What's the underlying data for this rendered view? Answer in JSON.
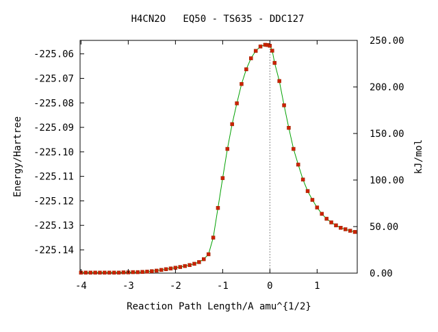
{
  "chart_data": {
    "type": "line",
    "title": "H4CN2O   EQ50 - TS635 - DDC127",
    "xlabel": "Reaction Path Length/A amu^{1/2}",
    "ylabel": "Energy/Hartree",
    "y2label": "kJ/mol",
    "xlim": [
      -4.02,
      1.85
    ],
    "ylim": [
      -225.1495,
      -225.0545
    ],
    "y2lim": [
      0.0,
      250.0
    ],
    "x_ticks": [
      -4,
      -3,
      -2,
      -1,
      0,
      1
    ],
    "x_tick_labels": [
      "-4",
      "-3",
      "-2",
      "-1",
      "0",
      "1"
    ],
    "y_ticks": [
      -225.06,
      -225.07,
      -225.08,
      -225.09,
      -225.1,
      -225.11,
      -225.12,
      -225.13,
      -225.14
    ],
    "y_tick_labels": [
      "-225.06",
      "-225.07",
      "-225.08",
      "-225.09",
      "-225.10",
      "-225.11",
      "-225.12",
      "-225.13",
      "-225.14"
    ],
    "y2_ticks": [
      0,
      50,
      100,
      150,
      200,
      250
    ],
    "y2_tick_labels": [
      "0.00",
      "50.00",
      "100.00",
      "150.00",
      "200.00",
      "250.00"
    ],
    "ts_marker_x": 0.0,
    "grid": false,
    "line_color": "#00a000",
    "marker_color": "#cc2200",
    "series": [
      {
        "x": [
          -4.0,
          -3.9,
          -3.8,
          -3.7,
          -3.6,
          -3.5,
          -3.4,
          -3.3,
          -3.2,
          -3.1,
          -3.0,
          -2.9,
          -2.8,
          -2.7,
          -2.6,
          -2.5,
          -2.4,
          -2.3,
          -2.2,
          -2.1,
          -2.0,
          -1.9,
          -1.8,
          -1.7,
          -1.6,
          -1.5,
          -1.4,
          -1.3,
          -1.2,
          -1.1,
          -1.0,
          -0.9,
          -0.8,
          -0.7,
          -0.6,
          -0.5,
          -0.4,
          -0.3,
          -0.2,
          -0.1,
          -0.05,
          0.0,
          0.05,
          0.1,
          0.2,
          0.3,
          0.4,
          0.5,
          0.6,
          0.7,
          0.8,
          0.9,
          1.0,
          1.1,
          1.2,
          1.3,
          1.4,
          1.5,
          1.6,
          1.7,
          1.8
        ],
        "y": [
          -225.1493,
          -225.1493,
          -225.1493,
          -225.1493,
          -225.1493,
          -225.1493,
          -225.1493,
          -225.1493,
          -225.1493,
          -225.1492,
          -225.1492,
          -225.1491,
          -225.1491,
          -225.149,
          -225.1489,
          -225.1487,
          -225.1485,
          -225.1482,
          -225.1479,
          -225.1476,
          -225.1473,
          -225.147,
          -225.1466,
          -225.1462,
          -225.1457,
          -225.145,
          -225.1438,
          -225.1418,
          -225.135,
          -225.1229,
          -225.1107,
          -225.0988,
          -225.0887,
          -225.0802,
          -225.0723,
          -225.0663,
          -225.0618,
          -225.0588,
          -225.057,
          -225.0563,
          -225.0564,
          -225.0567,
          -225.0587,
          -225.0637,
          -225.0711,
          -225.081,
          -225.0902,
          -225.0988,
          -225.1052,
          -225.1113,
          -225.116,
          -225.1196,
          -225.1227,
          -225.1253,
          -225.1273,
          -225.1288,
          -225.13,
          -225.131,
          -225.1316,
          -225.1322,
          -225.1327
        ]
      }
    ]
  }
}
